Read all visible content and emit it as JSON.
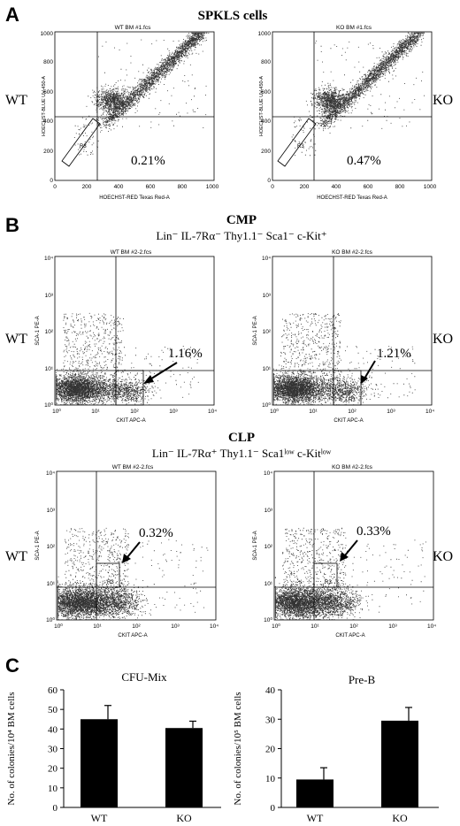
{
  "panels": {
    "A": {
      "letter": "A",
      "title": "SPKLS cells",
      "row_label_left": "WT",
      "row_label_right": "KO",
      "plots": [
        {
          "file": "WT BM #1.fcs",
          "percent": "0.21%",
          "gate": "R3",
          "ylabel": "HOECHST-BLUE UV-450-A",
          "xlabel": "HOECHST-RED Texas Red-A",
          "ticks": [
            "0",
            "200",
            "400",
            "600",
            "800",
            "1000"
          ]
        },
        {
          "file": "KO BM #1.fcs",
          "percent": "0.47%",
          "gate": "R3",
          "ylabel": "HOECHST-BLUE UV-450-A",
          "xlabel": "HOECHST-RED Texas Red-A",
          "ticks": [
            "0",
            "200",
            "400",
            "600",
            "800",
            "1000"
          ]
        }
      ]
    },
    "B": {
      "letter": "B",
      "cmp": {
        "title": "CMP",
        "subtitle": "Lin⁻ IL-7Rα⁻ Thy1.1⁻ Sca1⁻ c-Kit⁺",
        "row_label_left": "WT",
        "row_label_right": "KO",
        "plots": [
          {
            "file": "WT BM #2-2.fcs",
            "percent": "1.16%",
            "gate": "R3",
            "ylabel": "SCA-1 PE-A",
            "xlabel": "CKIT APC-A"
          },
          {
            "file": "KO BM #2-2.fcs",
            "percent": "1.21%",
            "gate": "R3",
            "ylabel": "SCA-1 PE-A",
            "xlabel": "CKIT APC-A"
          }
        ]
      },
      "clp": {
        "title": "CLP",
        "subtitle": "Lin⁻ IL-7Rα⁺ Thy1.1⁻ Sca1ˡᵒʷ c-Kitˡᵒʷ",
        "row_label_left": "WT",
        "row_label_right": "KO",
        "plots": [
          {
            "file": "WT BM #2-2.fcs",
            "percent": "0.32%",
            "gate": "R3",
            "ylabel": "SCA-1 PE-A",
            "xlabel": "CKIT APC-A"
          },
          {
            "file": "KO BM #2-2.fcs",
            "percent": "0.33%",
            "gate": "R3",
            "ylabel": "SCA-1 PE-A",
            "xlabel": "CKIT APC-A"
          }
        ]
      },
      "log_ticks": [
        "10⁰",
        "10¹",
        "10²",
        "10³",
        "10⁴"
      ]
    },
    "C": {
      "letter": "C"
    }
  },
  "chart_data": [
    {
      "type": "bar",
      "title": "CFU-Mix",
      "categories": [
        "WT",
        "KO"
      ],
      "values": [
        45,
        40.5
      ],
      "errors": [
        7,
        3.5
      ],
      "ylabel": "No. of colonies/10⁴ BM cells",
      "xlabel": "",
      "ylim": [
        0,
        60
      ],
      "yticks": [
        0,
        10,
        20,
        30,
        40,
        50,
        60
      ],
      "grid": false,
      "bar_color": "#000000"
    },
    {
      "type": "bar",
      "title": "Pre-B",
      "categories": [
        "WT",
        "KO"
      ],
      "values": [
        9.5,
        29.5
      ],
      "errors": [
        4,
        4.5
      ],
      "ylabel": "No. of colonies/10⁵ BM cells",
      "xlabel": "",
      "ylim": [
        0,
        40
      ],
      "yticks": [
        0,
        10,
        20,
        30,
        40
      ],
      "grid": false,
      "bar_color": "#000000"
    }
  ]
}
